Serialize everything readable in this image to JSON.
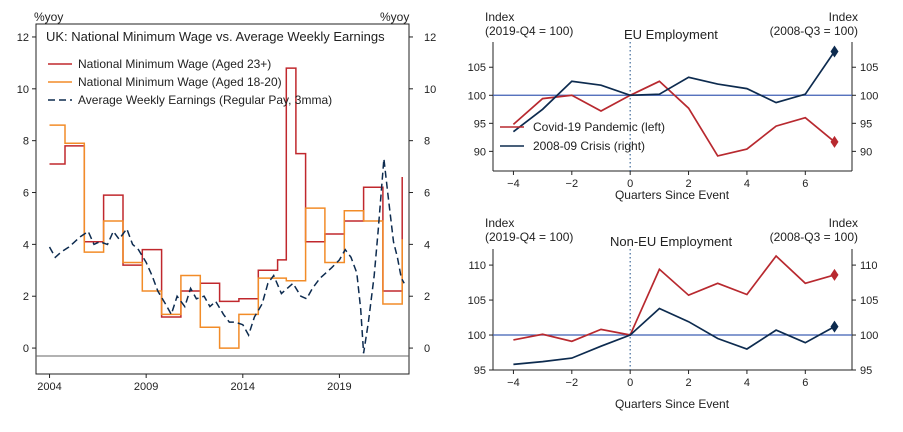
{
  "chart_data": [
    {
      "id": "left",
      "type": "line",
      "title": "UK: National Minimum Wage vs. Average Weekly Earnings",
      "ylabel_left": "%yoy",
      "ylabel_right": "%yoy",
      "xlim": [
        2003.3,
        2022.6
      ],
      "ylim": [
        -1,
        12.5
      ],
      "xticks": [
        2004,
        2009,
        2014,
        2019
      ],
      "yticks": [
        0,
        2,
        4,
        6,
        8,
        10,
        12
      ],
      "legend": [
        "National Minimum Wage (Aged 23+)",
        "National Minimum Wage (Aged 18-20)",
        "Average Weekly Earnings (Regular Pay, 3mma)"
      ],
      "series": [
        {
          "name": "National Minimum Wage (Aged 23+)",
          "color": "#c0282d",
          "style": "solid",
          "points": [
            [
              2004.0,
              7.1
            ],
            [
              2004.8,
              7.1
            ],
            [
              2004.8,
              7.8
            ],
            [
              2005.8,
              7.8
            ],
            [
              2005.8,
              4.1
            ],
            [
              2006.8,
              4.1
            ],
            [
              2006.8,
              5.9
            ],
            [
              2007.8,
              5.9
            ],
            [
              2007.8,
              3.2
            ],
            [
              2008.8,
              3.2
            ],
            [
              2008.8,
              3.8
            ],
            [
              2009.8,
              3.8
            ],
            [
              2009.8,
              1.2
            ],
            [
              2010.8,
              1.2
            ],
            [
              2010.8,
              2.2
            ],
            [
              2011.8,
              2.2
            ],
            [
              2011.8,
              2.5
            ],
            [
              2012.8,
              2.5
            ],
            [
              2012.8,
              1.8
            ],
            [
              2013.8,
              1.8
            ],
            [
              2013.8,
              1.9
            ],
            [
              2014.8,
              1.9
            ],
            [
              2014.8,
              3.0
            ],
            [
              2015.8,
              3.0
            ],
            [
              2015.8,
              3.4
            ],
            [
              2016.25,
              3.4
            ],
            [
              2016.25,
              10.8
            ],
            [
              2016.75,
              10.8
            ],
            [
              2016.75,
              7.5
            ],
            [
              2017.25,
              7.5
            ],
            [
              2017.25,
              4.1
            ],
            [
              2018.25,
              4.1
            ],
            [
              2018.25,
              4.4
            ],
            [
              2019.25,
              4.4
            ],
            [
              2019.25,
              4.9
            ],
            [
              2020.25,
              4.9
            ],
            [
              2020.25,
              6.2
            ],
            [
              2021.25,
              6.2
            ],
            [
              2021.25,
              2.2
            ],
            [
              2022.25,
              2.2
            ],
            [
              2022.25,
              6.6
            ]
          ]
        },
        {
          "name": "National Minimum Wage (Aged 18-20)",
          "color": "#f28c28",
          "style": "solid",
          "points": [
            [
              2004.0,
              8.6
            ],
            [
              2004.8,
              8.6
            ],
            [
              2004.8,
              7.9
            ],
            [
              2005.8,
              7.9
            ],
            [
              2005.8,
              3.7
            ],
            [
              2006.8,
              3.7
            ],
            [
              2006.8,
              4.9
            ],
            [
              2007.8,
              4.9
            ],
            [
              2007.8,
              3.3
            ],
            [
              2008.8,
              3.3
            ],
            [
              2008.8,
              2.2
            ],
            [
              2009.8,
              2.2
            ],
            [
              2009.8,
              1.3
            ],
            [
              2010.8,
              1.3
            ],
            [
              2010.8,
              2.8
            ],
            [
              2011.8,
              2.8
            ],
            [
              2011.8,
              0.8
            ],
            [
              2012.8,
              0.8
            ],
            [
              2012.8,
              0.0
            ],
            [
              2013.8,
              0.0
            ],
            [
              2013.8,
              1.3
            ],
            [
              2014.8,
              1.3
            ],
            [
              2014.8,
              2.7
            ],
            [
              2015.8,
              2.7
            ],
            [
              2015.8,
              2.7
            ],
            [
              2016.25,
              2.7
            ],
            [
              2016.25,
              2.6
            ],
            [
              2017.25,
              2.6
            ],
            [
              2017.25,
              5.4
            ],
            [
              2018.25,
              5.4
            ],
            [
              2018.25,
              3.3
            ],
            [
              2019.25,
              3.3
            ],
            [
              2019.25,
              5.3
            ],
            [
              2020.25,
              5.3
            ],
            [
              2020.25,
              4.9
            ],
            [
              2021.25,
              4.9
            ],
            [
              2021.25,
              1.7
            ],
            [
              2022.25,
              1.7
            ],
            [
              2022.25,
              4.2
            ]
          ]
        },
        {
          "name": "Average Weekly Earnings (Regular Pay, 3mma)",
          "color": "#0d2b4f",
          "style": "dashed",
          "points": [
            [
              2004.0,
              3.9
            ],
            [
              2004.3,
              3.5
            ],
            [
              2004.6,
              3.7
            ],
            [
              2005.0,
              3.9
            ],
            [
              2005.3,
              4.1
            ],
            [
              2005.6,
              4.3
            ],
            [
              2006.0,
              4.5
            ],
            [
              2006.3,
              4.0
            ],
            [
              2006.6,
              4.1
            ],
            [
              2007.0,
              4.0
            ],
            [
              2007.3,
              4.5
            ],
            [
              2007.6,
              4.2
            ],
            [
              2008.0,
              4.6
            ],
            [
              2008.3,
              4.0
            ],
            [
              2008.6,
              3.8
            ],
            [
              2009.0,
              3.3
            ],
            [
              2009.3,
              2.8
            ],
            [
              2009.6,
              2.2
            ],
            [
              2010.0,
              1.7
            ],
            [
              2010.3,
              1.3
            ],
            [
              2010.6,
              2.0
            ],
            [
              2011.0,
              1.6
            ],
            [
              2011.3,
              2.3
            ],
            [
              2011.6,
              1.9
            ],
            [
              2012.0,
              2.0
            ],
            [
              2012.3,
              1.6
            ],
            [
              2012.6,
              1.8
            ],
            [
              2013.0,
              1.3
            ],
            [
              2013.3,
              1.0
            ],
            [
              2013.6,
              1.0
            ],
            [
              2014.0,
              0.9
            ],
            [
              2014.3,
              0.5
            ],
            [
              2014.6,
              1.2
            ],
            [
              2015.0,
              1.7
            ],
            [
              2015.3,
              2.5
            ],
            [
              2015.6,
              2.8
            ],
            [
              2016.0,
              2.1
            ],
            [
              2016.3,
              2.3
            ],
            [
              2016.6,
              2.5
            ],
            [
              2017.0,
              2.0
            ],
            [
              2017.3,
              1.9
            ],
            [
              2017.6,
              2.3
            ],
            [
              2018.0,
              2.7
            ],
            [
              2018.3,
              2.9
            ],
            [
              2018.6,
              3.1
            ],
            [
              2019.0,
              3.4
            ],
            [
              2019.3,
              3.8
            ],
            [
              2019.6,
              3.5
            ],
            [
              2019.9,
              2.9
            ],
            [
              2020.1,
              1.5
            ],
            [
              2020.25,
              -0.2
            ],
            [
              2020.5,
              1.0
            ],
            [
              2020.8,
              2.8
            ],
            [
              2021.0,
              4.5
            ],
            [
              2021.3,
              7.3
            ],
            [
              2021.5,
              6.0
            ],
            [
              2021.8,
              4.1
            ],
            [
              2022.0,
              3.5
            ],
            [
              2022.2,
              2.7
            ],
            [
              2022.35,
              2.5
            ]
          ]
        }
      ]
    },
    {
      "id": "eu",
      "type": "line",
      "title": "EU Employment",
      "left_axis_label": [
        "Index",
        "(2019-Q4 = 100)"
      ],
      "right_axis_label": [
        "Index",
        "(2008-Q3 = 100)"
      ],
      "xlabel": "Quarters Since Event",
      "xlim": [
        -4.7,
        7.6
      ],
      "ylim_left": [
        86.5,
        109.5
      ],
      "yticks_left": [
        90,
        95,
        100,
        105
      ],
      "ylim_right": [
        86.5,
        109.5
      ],
      "yticks_right": [
        90,
        95,
        100,
        105
      ],
      "xticks": [
        -4,
        -2,
        0,
        2,
        4,
        6
      ],
      "reference_line": 100,
      "legend": [
        "Covid-19 Pandemic (left)",
        "2008-09 Crisis (right)"
      ],
      "series": [
        {
          "name": "Covid-19 Pandemic (left)",
          "color": "#b8292f",
          "x": [
            -4,
            -3,
            -2,
            -1,
            0,
            1,
            2,
            3,
            4,
            5,
            6,
            7
          ],
          "y": [
            94.8,
            99.4,
            100.0,
            97.2,
            100.0,
            102.5,
            97.7,
            89.2,
            90.4,
            94.5,
            96.0,
            91.7
          ]
        },
        {
          "name": "2008-09 Crisis (right)",
          "color": "#0d2b4f",
          "x": [
            -4,
            -3,
            -2,
            -1,
            0,
            1,
            2,
            3,
            4,
            5,
            6,
            7
          ],
          "y": [
            93.5,
            97.5,
            102.5,
            101.8,
            100.0,
            100.2,
            103.2,
            102.0,
            101.2,
            98.7,
            100.2,
            107.8
          ]
        }
      ]
    },
    {
      "id": "noneu",
      "type": "line",
      "title": "Non-EU Employment",
      "left_axis_label": [
        "Index",
        "(2019-Q4 = 100)"
      ],
      "right_axis_label": [
        "Index",
        "(2008-Q3 = 100)"
      ],
      "xlabel": "Quarters Since Event",
      "xlim": [
        -4.7,
        7.6
      ],
      "ylim_left": [
        95,
        112.3
      ],
      "yticks_left": [
        95,
        100,
        105,
        110
      ],
      "ylim_right": [
        95,
        112.3
      ],
      "yticks_right": [
        95,
        100,
        105,
        110
      ],
      "xticks": [
        -4,
        -2,
        0,
        2,
        4,
        6
      ],
      "reference_line": 100,
      "series": [
        {
          "name": "Covid-19 Pandemic (left)",
          "color": "#b8292f",
          "x": [
            -4,
            -3,
            -2,
            -1,
            0,
            1,
            2,
            3,
            4,
            5,
            6,
            7
          ],
          "y": [
            99.3,
            100.1,
            99.1,
            100.8,
            100.0,
            109.4,
            105.7,
            107.4,
            105.8,
            111.3,
            107.4,
            108.6
          ]
        },
        {
          "name": "2008-09 Crisis (right)",
          "color": "#0d2b4f",
          "x": [
            -4,
            -3,
            -2,
            -1,
            0,
            1,
            2,
            3,
            4,
            5,
            6,
            7
          ],
          "y": [
            95.8,
            96.2,
            96.7,
            98.4,
            100.0,
            103.8,
            101.9,
            99.5,
            98.0,
            100.7,
            98.9,
            101.2
          ]
        }
      ]
    }
  ]
}
